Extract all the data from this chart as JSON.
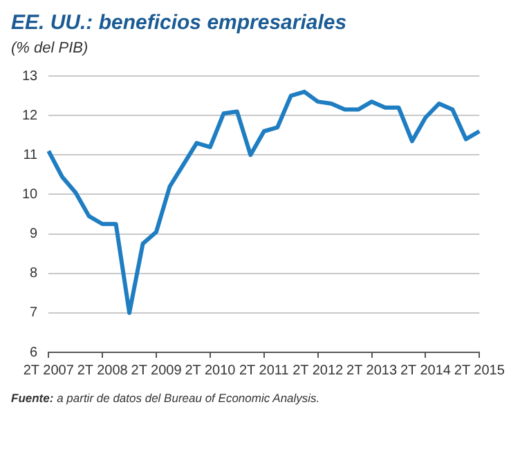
{
  "chart_data": {
    "type": "line",
    "title": "EE. UU.: beneficios empresariales",
    "subtitle": "(% del PIB)",
    "annotations": [
      "Fuente: a partir de datos del Bureau of Economic Analysis."
    ],
    "categories": [
      "2T 2007",
      null,
      null,
      null,
      "2T 2008",
      null,
      null,
      null,
      "2T 2009",
      null,
      null,
      null,
      "2T 2010",
      null,
      null,
      null,
      "2T 2011",
      null,
      null,
      null,
      "2T 2012",
      null,
      null,
      null,
      "2T 2013",
      null,
      null,
      null,
      "2T 2014",
      null,
      null,
      null,
      "2T 2015"
    ],
    "series": [
      {
        "color": "#1f7dc2",
        "values": [
          11.1,
          10.45,
          10.05,
          9.45,
          9.25,
          9.25,
          7.0,
          8.75,
          9.05,
          10.2,
          10.75,
          11.3,
          11.2,
          12.05,
          12.1,
          11.0,
          11.6,
          11.7,
          12.5,
          12.6,
          12.35,
          12.3,
          12.15,
          12.15,
          12.35,
          12.2,
          12.2,
          11.35,
          11.95,
          12.3,
          12.15,
          11.4,
          11.6
        ]
      }
    ],
    "ylim": [
      6,
      13
    ],
    "yticks": [
      6,
      7,
      8,
      9,
      10,
      11,
      12,
      13
    ],
    "grid": "y",
    "legend": false,
    "marker": "none",
    "line_style": "solid"
  }
}
